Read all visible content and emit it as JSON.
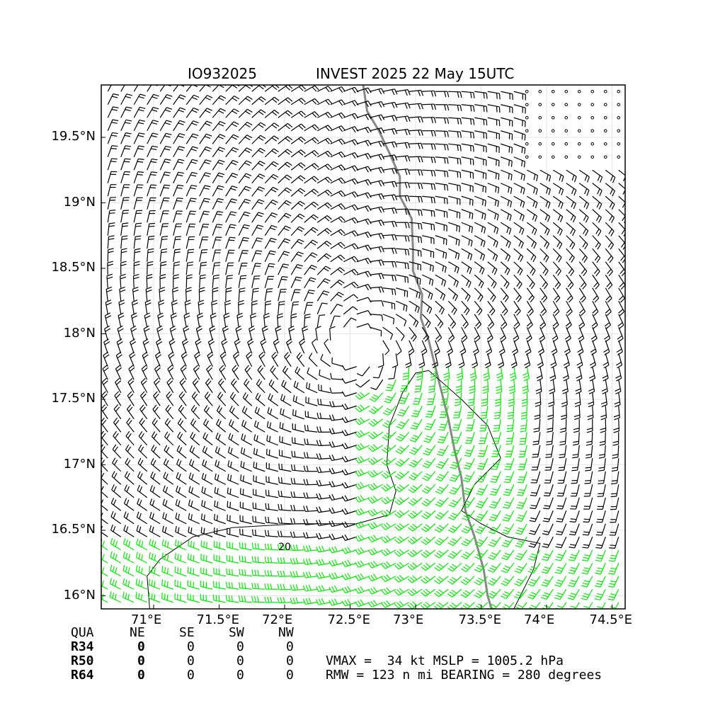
{
  "header": {
    "storm_id": "IO932025",
    "storm_title": "INVEST 2025 22 May 15UTC"
  },
  "chart_data": {
    "type": "wind-barb-map",
    "x_ticks": [
      "71°E",
      "71.5°E",
      "72°E",
      "72.5°E",
      "73°E",
      "73.5°E",
      "74°E",
      "74.5°E"
    ],
    "y_ticks": [
      "19.5°N",
      "19°N",
      "18.5°N",
      "18°N",
      "17.5°N",
      "17°N",
      "16.5°N",
      "16°N"
    ],
    "x_tick_values": [
      71.0,
      71.5,
      72.0,
      72.5,
      73.0,
      73.5,
      74.0,
      74.5
    ],
    "y_tick_values": [
      19.5,
      19.0,
      18.5,
      18.0,
      17.5,
      17.0,
      16.5,
      16.0
    ],
    "xlim": [
      70.6,
      74.6
    ],
    "ylim": [
      15.9,
      19.9
    ],
    "grid": true,
    "center": {
      "lon": 72.55,
      "lat": 17.9
    },
    "barb_colors": {
      "normal": "#000000",
      "strong": "#00ee00",
      "calm": "#000000"
    },
    "coastline_color": "#888888",
    "contour_label": "20"
  },
  "radii_table": {
    "columns": [
      "QUA",
      "NE",
      "SE",
      "SW",
      "NW"
    ],
    "rows": [
      {
        "label": "R34",
        "values": [
          "0",
          "0",
          "0",
          "0"
        ]
      },
      {
        "label": "R50",
        "values": [
          "0",
          "0",
          "0",
          "0"
        ]
      },
      {
        "label": "R64",
        "values": [
          "0",
          "0",
          "0",
          "0"
        ]
      }
    ]
  },
  "summary": {
    "line1": "VMAX =  34 kt MSLP = 1005.2 hPa",
    "line2": "RMW = 123 n mi BEARING = 280 degrees"
  }
}
